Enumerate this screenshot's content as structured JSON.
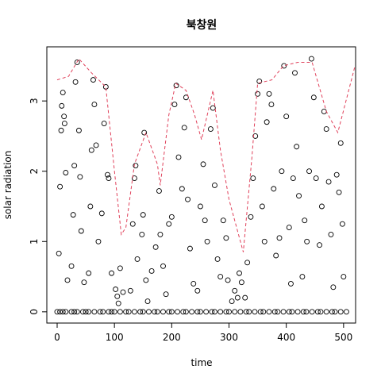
{
  "chart_data": {
    "type": "scatter",
    "title": "북창원",
    "xlabel": "time",
    "ylabel": "solar radiation",
    "xlim": [
      -18,
      521
    ],
    "ylim": [
      -0.16,
      3.77
    ],
    "xticks": [
      0,
      100,
      200,
      300,
      400,
      500
    ],
    "yticks": [
      0,
      1,
      2,
      3
    ],
    "points": {
      "color": "#000000",
      "x": [
        0,
        5,
        10,
        15,
        25,
        30,
        35,
        45,
        50,
        55,
        65,
        75,
        80,
        90,
        95,
        100,
        110,
        120,
        125,
        135,
        145,
        150,
        160,
        170,
        175,
        185,
        195,
        200,
        210,
        220,
        225,
        235,
        245,
        250,
        260,
        270,
        275,
        285,
        295,
        300,
        310,
        320,
        330,
        335,
        345,
        355,
        360,
        370,
        380,
        385,
        395,
        405,
        410,
        420,
        430,
        435,
        445,
        455,
        460,
        470,
        480,
        485,
        495,
        505,
        3,
        5,
        7,
        8,
        10,
        12,
        13,
        15,
        18,
        25,
        28,
        30,
        32,
        35,
        38,
        40,
        42,
        47,
        55,
        58,
        60,
        63,
        65,
        68,
        72,
        78,
        82,
        85,
        88,
        90,
        95,
        102,
        105,
        107,
        110,
        115,
        128,
        132,
        135,
        137,
        140,
        148,
        150,
        152,
        155,
        158,
        165,
        172,
        178,
        180,
        185,
        190,
        195,
        200,
        205,
        208,
        212,
        218,
        222,
        225,
        228,
        232,
        238,
        245,
        250,
        255,
        258,
        262,
        268,
        272,
        275,
        280,
        285,
        290,
        295,
        298,
        305,
        310,
        315,
        318,
        322,
        328,
        332,
        338,
        342,
        346,
        350,
        353,
        358,
        362,
        366,
        370,
        374,
        378,
        382,
        388,
        392,
        396,
        400,
        405,
        408,
        412,
        415,
        418,
        422,
        428,
        432,
        436,
        440,
        444,
        448,
        452,
        458,
        462,
        466,
        470,
        474,
        478,
        482,
        488,
        492,
        495,
        498,
        500
      ],
      "y": [
        0,
        0,
        0,
        0,
        0,
        0,
        0,
        0,
        0,
        0,
        0,
        0,
        0,
        0,
        0,
        0,
        0,
        0,
        0,
        0,
        0,
        0,
        0,
        0,
        0,
        0,
        0,
        0,
        0,
        0,
        0,
        0,
        0,
        0,
        0,
        0,
        0,
        0,
        0,
        0,
        0,
        0,
        0,
        0,
        0,
        0,
        0,
        0,
        0,
        0,
        0,
        0,
        0,
        0,
        0,
        0,
        0,
        0,
        0,
        0,
        0,
        0,
        0,
        0,
        0.83,
        1.78,
        2.58,
        2.93,
        3.12,
        2.78,
        2.68,
        1.98,
        0.45,
        0.65,
        1.38,
        2.08,
        3.27,
        3.55,
        2.58,
        1.92,
        1.15,
        0.42,
        0.55,
        1.5,
        2.3,
        3.3,
        2.95,
        2.37,
        1.0,
        1.4,
        2.68,
        3.2,
        1.95,
        1.9,
        0.55,
        0.32,
        0.22,
        0.12,
        0.62,
        0.28,
        0.3,
        1.25,
        1.9,
        2.08,
        0.75,
        1.1,
        1.38,
        2.55,
        0.45,
        0.15,
        0.58,
        0.92,
        1.72,
        1.1,
        0.65,
        0.25,
        1.25,
        1.35,
        2.95,
        3.22,
        2.2,
        1.75,
        2.62,
        3.05,
        1.6,
        0.9,
        0.4,
        0.3,
        1.5,
        2.1,
        1.3,
        1.0,
        2.6,
        2.9,
        1.8,
        0.75,
        0.5,
        1.3,
        1.05,
        0.45,
        0.15,
        0.3,
        0.2,
        0.55,
        0.42,
        0.2,
        0.7,
        1.35,
        1.9,
        2.5,
        3.1,
        3.28,
        1.5,
        1.0,
        2.7,
        3.1,
        2.95,
        1.75,
        0.8,
        1.05,
        2.0,
        3.5,
        2.78,
        1.2,
        0.4,
        1.9,
        3.4,
        2.35,
        1.65,
        0.5,
        1.3,
        1.0,
        2.0,
        3.6,
        3.05,
        1.9,
        0.95,
        1.5,
        2.85,
        2.6,
        1.85,
        1.1,
        0.35,
        1.95,
        1.7,
        2.4,
        1.25,
        0.5
      ]
    },
    "line": {
      "color": "#e0405a",
      "dashed": true,
      "x": [
        0,
        20,
        38,
        60,
        85,
        100,
        112,
        120,
        135,
        155,
        175,
        180,
        195,
        207,
        225,
        240,
        252,
        272,
        285,
        300,
        325,
        340,
        350,
        375,
        395,
        420,
        445,
        470,
        490,
        520
      ],
      "y": [
        3.3,
        3.35,
        3.6,
        3.4,
        3.2,
        2.0,
        1.1,
        1.2,
        2.1,
        2.55,
        2.1,
        1.8,
        2.8,
        3.25,
        3.15,
        2.8,
        2.45,
        3.15,
        2.3,
        1.6,
        0.85,
        2.2,
        3.25,
        3.3,
        3.5,
        3.55,
        3.55,
        2.85,
        2.55,
        3.5
      ]
    }
  }
}
